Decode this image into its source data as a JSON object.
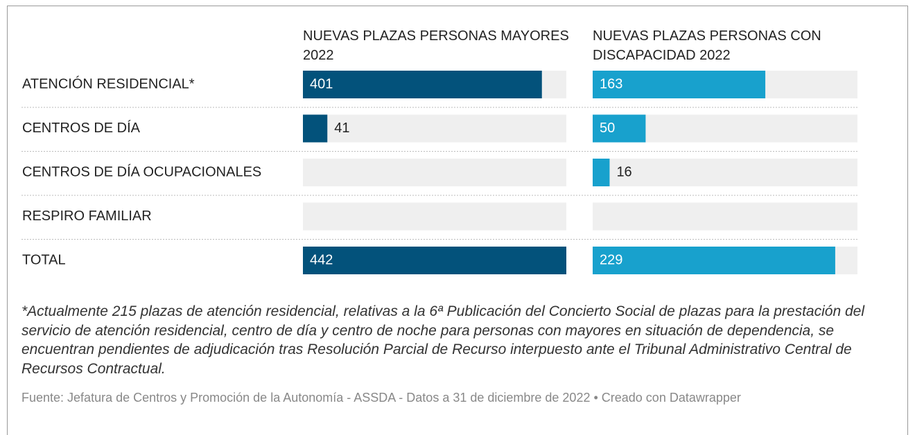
{
  "chart_data": {
    "type": "bar",
    "categories": [
      "ATENCIÓN RESIDENCIAL*",
      "CENTROS DE DÍA",
      "CENTROS DE DÍA OCUPACIONALES",
      "RESPIRO FAMILIAR",
      "TOTAL"
    ],
    "series": [
      {
        "name": "NUEVAS PLAZAS PERSONAS MAYORES 2022",
        "color": "#03527b",
        "values": [
          401,
          41,
          null,
          null,
          442
        ],
        "xlim": [
          0,
          442
        ]
      },
      {
        "name": "NUEVAS PLAZAS PERSONAS CON DISCAPACIDAD 2022",
        "color": "#18a1cd",
        "values": [
          163,
          50,
          16,
          null,
          229
        ],
        "xlim": [
          0,
          250
        ]
      }
    ],
    "footnote": "*Actualmente 215 plazas de atención residencial, relativas a la 6ª Publicación del Concierto Social de plazas para la prestación del servicio de atención residencial, centro de día y centro de noche para personas con mayores en situación de dependencia, se encuentran pendientes de adjudicación tras Resolución Parcial de Recurso interpuesto ante el Tribunal Administrativo Central de Recursos Contractual.",
    "source": "Fuente: Jefatura de Centros y Promoción de la Autonomía - ASSDA - Datos a 31 de diciembre de 2022 • Creado con Datawrapper"
  }
}
